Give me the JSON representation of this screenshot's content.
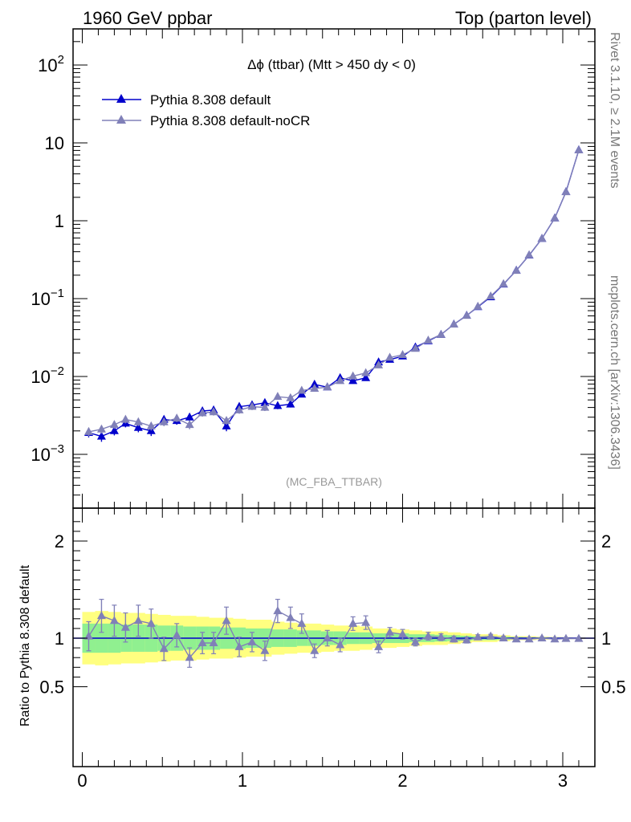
{
  "header": {
    "left": "1960 GeV ppbar",
    "right": "Top (parton level)"
  },
  "side_labels": {
    "rivet": "Rivet 3.1.10, ≥ 2.1M events",
    "mcplots": "mcplots.cern.ch [arXiv:1306.3436]"
  },
  "plot_title": "Δϕ (ttbar) (Mtt > 450 dy < 0)",
  "analysis_tag": "(MC_FBA_TTBAR)",
  "colors": {
    "series1": "#0000cc",
    "series2": "#8080b8",
    "band_outer": "#ffff80",
    "band_inner": "#90f090"
  },
  "chart_data": [
    {
      "type": "line",
      "panel": "main",
      "yscale": "log",
      "xlim": [
        -0.1,
        3.2
      ],
      "ylim": [
        0.00025,
        300
      ],
      "xlabel": "",
      "ylabel": "",
      "ytick_labels": [
        {
          "value": 0.001,
          "base": "10",
          "exp": "−3"
        },
        {
          "value": 0.01,
          "base": "10",
          "exp": "−2"
        },
        {
          "value": 0.1,
          "base": "10",
          "exp": "−1"
        },
        {
          "value": 1,
          "base": "1",
          "exp": ""
        },
        {
          "value": 10,
          "base": "10",
          "exp": ""
        },
        {
          "value": 100,
          "base": "10",
          "exp": "2"
        }
      ],
      "legend_position": "top-left",
      "x": [
        0.04,
        0.12,
        0.2,
        0.27,
        0.35,
        0.43,
        0.51,
        0.59,
        0.67,
        0.75,
        0.82,
        0.9,
        0.98,
        1.06,
        1.14,
        1.22,
        1.3,
        1.37,
        1.45,
        1.53,
        1.61,
        1.69,
        1.77,
        1.85,
        1.92,
        2.0,
        2.08,
        2.16,
        2.24,
        2.32,
        2.4,
        2.47,
        2.55,
        2.63,
        2.71,
        2.79,
        2.87,
        2.95,
        3.02,
        3.1
      ],
      "series": [
        {
          "name": "Pythia 8.308 default",
          "marker": "triangle",
          "values": [
            0.0019,
            0.0017,
            0.002,
            0.0025,
            0.0022,
            0.002,
            0.0028,
            0.0027,
            0.003,
            0.0036,
            0.0037,
            0.0023,
            0.0041,
            0.0043,
            0.0046,
            0.0042,
            0.0044,
            0.0059,
            0.0079,
            0.0073,
            0.0096,
            0.0088,
            0.0096,
            0.0153,
            0.0165,
            0.0182,
            0.0238,
            0.0286,
            0.0345,
            0.0468,
            0.0608,
            0.0784,
            0.105,
            0.153,
            0.23,
            0.36,
            0.59,
            1.08,
            2.35,
            8.1
          ],
          "errors": [
            0.00025,
            0.00025,
            0.00025,
            0.00028,
            0.00028,
            0.00028,
            0.0003,
            0.0003,
            0.00032,
            0.00035,
            0.00035,
            0.00032,
            0.00038,
            0.0004,
            0.0004,
            0.0004,
            0.0004,
            0.00045,
            0.0005,
            0.0005,
            0.00055,
            0.00055,
            0.0006,
            0.0007,
            0.0007,
            0.0008,
            0.0009,
            0.001,
            0.0011,
            0.0013,
            0.0016,
            0.0019,
            0.0023,
            0.003,
            0.004,
            0.006,
            0.009,
            0.015,
            0.03,
            0.09
          ]
        },
        {
          "name": "Pythia 8.308 default-noCR",
          "marker": "triangle",
          "values": [
            0.00195,
            0.0021,
            0.0024,
            0.0028,
            0.0026,
            0.0023,
            0.0026,
            0.0029,
            0.0024,
            0.0034,
            0.0035,
            0.0027,
            0.0037,
            0.0041,
            0.004,
            0.0055,
            0.0053,
            0.0066,
            0.007,
            0.0073,
            0.0088,
            0.0101,
            0.0111,
            0.014,
            0.0175,
            0.019,
            0.0228,
            0.0291,
            0.0345,
            0.0468,
            0.0605,
            0.0792,
            0.1075,
            0.154,
            0.229,
            0.362,
            0.59,
            1.078,
            2.34,
            8.07
          ],
          "errors": [
            0.00025,
            0.00025,
            0.00028,
            0.0003,
            0.0003,
            0.00028,
            0.0003,
            0.0003,
            0.0003,
            0.00035,
            0.00035,
            0.0003,
            0.00038,
            0.0004,
            0.0004,
            0.00045,
            0.00045,
            0.0005,
            0.0005,
            0.0005,
            0.00055,
            0.0006,
            0.00065,
            0.0007,
            0.0008,
            0.0008,
            0.0009,
            0.001,
            0.0011,
            0.0013,
            0.0016,
            0.0019,
            0.0023,
            0.003,
            0.004,
            0.006,
            0.009,
            0.015,
            0.03,
            0.09
          ]
        }
      ]
    },
    {
      "type": "line",
      "panel": "ratio",
      "xlim": [
        -0.1,
        3.2
      ],
      "ylim": [
        0.4,
        2.3
      ],
      "ylabel": "Ratio to Pythia 8.308 default",
      "xtick_labels": [
        "0",
        "1",
        "2",
        "3"
      ],
      "ytick_labels": [
        "0.5",
        "1",
        "2"
      ],
      "reference_line": 1,
      "bands": {
        "edges": [
          0.0,
          0.08,
          0.16,
          0.24,
          0.31,
          0.39,
          0.47,
          0.55,
          0.63,
          0.71,
          0.79,
          0.86,
          0.94,
          1.02,
          1.1,
          1.18,
          1.26,
          1.34,
          1.41,
          1.49,
          1.57,
          1.65,
          1.73,
          1.81,
          1.88,
          1.96,
          2.04,
          2.12,
          2.2,
          2.28,
          2.36,
          2.43,
          2.51,
          2.59,
          2.67,
          2.75,
          2.83,
          2.91,
          2.99,
          3.06,
          3.14
        ],
        "outer_half_width": [
          0.27,
          0.28,
          0.27,
          0.26,
          0.26,
          0.25,
          0.24,
          0.23,
          0.23,
          0.22,
          0.21,
          0.21,
          0.2,
          0.19,
          0.19,
          0.17,
          0.16,
          0.15,
          0.15,
          0.14,
          0.13,
          0.13,
          0.12,
          0.1,
          0.1,
          0.09,
          0.08,
          0.07,
          0.07,
          0.06,
          0.05,
          0.04,
          0.04,
          0.03,
          0.02,
          0.02,
          0.015,
          0.012,
          0.01,
          0.008
        ],
        "inner_half_width": [
          0.15,
          0.15,
          0.15,
          0.14,
          0.14,
          0.14,
          0.13,
          0.13,
          0.12,
          0.12,
          0.12,
          0.11,
          0.11,
          0.1,
          0.1,
          0.09,
          0.09,
          0.08,
          0.08,
          0.07,
          0.07,
          0.06,
          0.06,
          0.05,
          0.05,
          0.05,
          0.04,
          0.04,
          0.035,
          0.03,
          0.025,
          0.02,
          0.02,
          0.015,
          0.012,
          0.01,
          0.008,
          0.006,
          0.005,
          0.004
        ]
      },
      "x": [
        0.04,
        0.12,
        0.2,
        0.27,
        0.35,
        0.43,
        0.51,
        0.59,
        0.67,
        0.75,
        0.82,
        0.9,
        0.98,
        1.06,
        1.14,
        1.22,
        1.3,
        1.37,
        1.45,
        1.53,
        1.61,
        1.69,
        1.77,
        1.85,
        1.92,
        2.0,
        2.08,
        2.16,
        2.24,
        2.32,
        2.4,
        2.47,
        2.55,
        2.63,
        2.71,
        2.79,
        2.87,
        2.95,
        3.02,
        3.1
      ],
      "series": [
        {
          "name": "Pythia 8.308 default-noCR",
          "values": [
            1.02,
            1.23,
            1.18,
            1.11,
            1.18,
            1.15,
            0.89,
            1.03,
            0.8,
            0.95,
            0.95,
            1.18,
            0.91,
            0.96,
            0.87,
            1.28,
            1.21,
            1.15,
            0.87,
            1.0,
            0.93,
            1.15,
            1.16,
            0.91,
            1.06,
            1.04,
            0.96,
            1.02,
            1.01,
            0.99,
            0.98,
            1.01,
            1.02,
            1.0,
            0.99,
            0.99,
            1.0,
            0.99,
            0.995,
            0.995
          ],
          "errors": [
            0.15,
            0.17,
            0.16,
            0.15,
            0.16,
            0.15,
            0.12,
            0.12,
            0.1,
            0.11,
            0.11,
            0.14,
            0.1,
            0.1,
            0.1,
            0.12,
            0.11,
            0.1,
            0.07,
            0.08,
            0.07,
            0.07,
            0.07,
            0.06,
            0.05,
            0.05,
            0.04,
            0.04,
            0.035,
            0.03,
            0.03,
            0.025,
            0.02,
            0.02,
            0.015,
            0.015,
            0.01,
            0.01,
            0.01,
            0.01
          ]
        }
      ]
    }
  ]
}
